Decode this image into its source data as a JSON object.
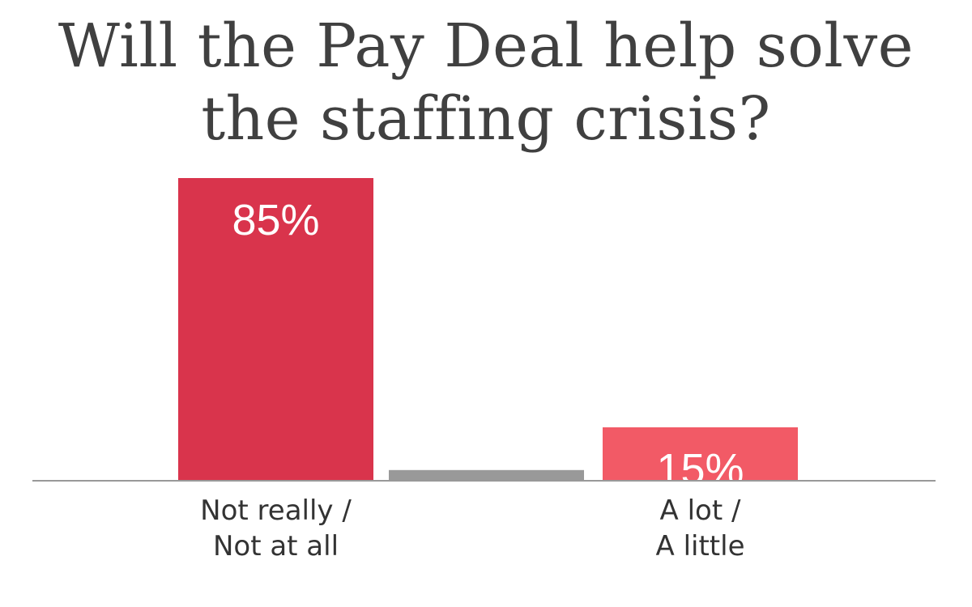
{
  "chart_data": {
    "type": "bar",
    "title": "Will the Pay Deal help solve the staffing crisis?",
    "title_lines": [
      "Will the Pay Deal help solve",
      "the staffing crisis?"
    ],
    "categories": [
      [
        "Not really /",
        "Not at all"
      ],
      [
        "",
        ""
      ],
      [
        "A lot /",
        "A little"
      ]
    ],
    "values": [
      85,
      3,
      15
    ],
    "value_labels": [
      "85%",
      "",
      "15%"
    ],
    "colors": [
      "#d9344c",
      "#999999",
      "#f25a66"
    ],
    "axis_color": "#999999",
    "ylim": [
      0,
      100
    ],
    "grid": false,
    "legend": "none"
  }
}
